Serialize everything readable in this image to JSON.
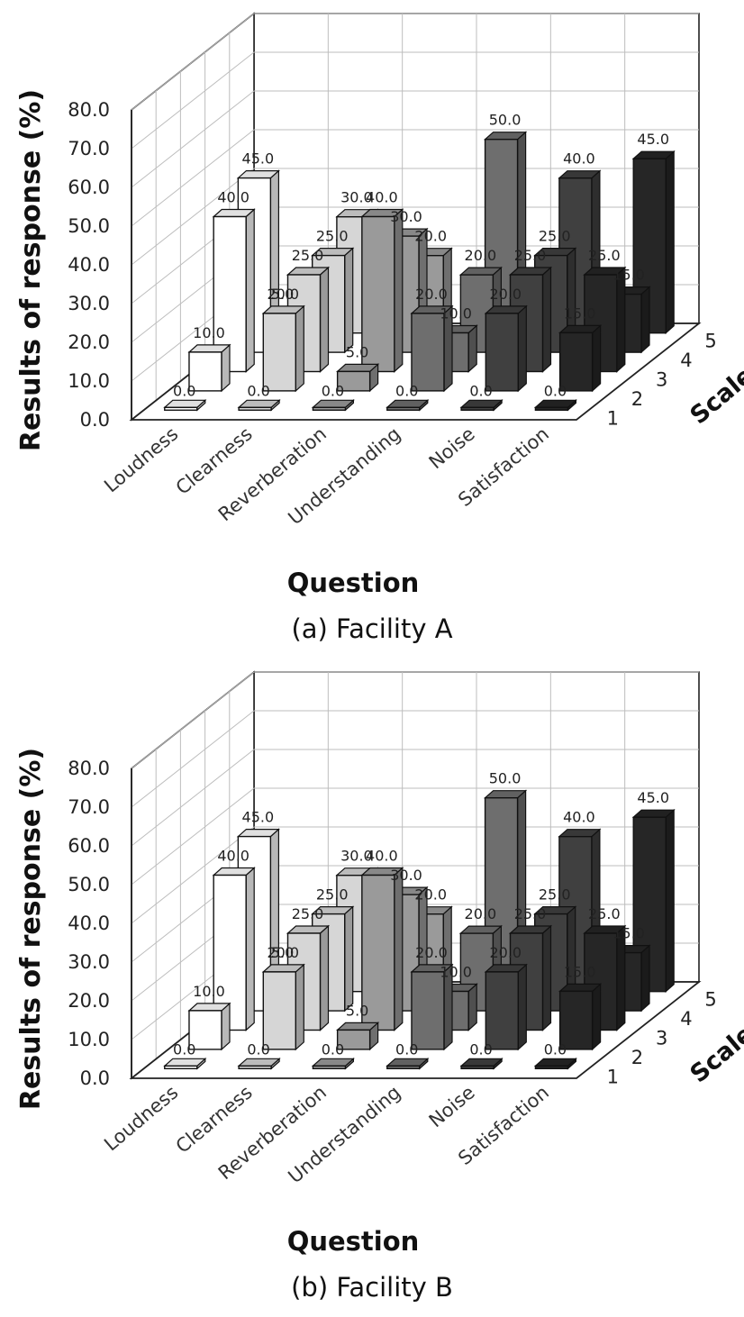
{
  "chart_data": [
    {
      "type": "bar",
      "style": "3d-grouped",
      "caption": "(a) Facility A",
      "xlabel": "Question",
      "ylabel": "Results of response (%)",
      "zlabel": "Scale",
      "ylim": [
        0,
        80
      ],
      "yticks": [
        "0.0",
        "10.0",
        "20.0",
        "30.0",
        "40.0",
        "50.0",
        "60.0",
        "70.0",
        "80.0"
      ],
      "zticks": [
        "1",
        "2",
        "3",
        "4",
        "5"
      ],
      "grid": true,
      "categories": [
        "Loudness",
        "Clearness",
        "Reverberation",
        "Understanding",
        "Noise",
        "Satisfaction"
      ],
      "category_colors": [
        "#ffffff",
        "#d6d6d6",
        "#9a9a9a",
        "#6e6e6e",
        "#404040",
        "#262626"
      ],
      "series": [
        {
          "name": "1",
          "values": [
            0,
            0,
            0,
            0,
            0,
            0
          ]
        },
        {
          "name": "2",
          "values": [
            10,
            20,
            5,
            20,
            20,
            15
          ]
        },
        {
          "name": "3",
          "values": [
            40,
            25,
            40,
            10,
            25,
            25
          ]
        },
        {
          "name": "4",
          "values": [
            45,
            25,
            30,
            20,
            25,
            15
          ]
        },
        {
          "name": "5",
          "values": [
            5,
            30,
            20,
            50,
            40,
            45
          ]
        }
      ]
    },
    {
      "type": "bar",
      "style": "3d-grouped",
      "caption": "(b) Facility B",
      "xlabel": "Question",
      "ylabel": "Results of response (%)",
      "zlabel": "Scale",
      "ylim": [
        0,
        80
      ],
      "yticks": [
        "0.0",
        "10.0",
        "20.0",
        "30.0",
        "40.0",
        "50.0",
        "60.0",
        "70.0",
        "80.0"
      ],
      "zticks": [
        "1",
        "2",
        "3",
        "4",
        "5"
      ],
      "grid": true,
      "categories": [
        "Loudness",
        "Clearness",
        "Reverberation",
        "Understanding",
        "Noise",
        "Satisfaction"
      ],
      "category_colors": [
        "#ffffff",
        "#d6d6d6",
        "#9a9a9a",
        "#6e6e6e",
        "#404040",
        "#262626"
      ],
      "series": [
        {
          "name": "1",
          "values": [
            0,
            0,
            0,
            0,
            0,
            0
          ]
        },
        {
          "name": "2",
          "values": [
            10,
            20,
            5,
            20,
            20,
            15
          ]
        },
        {
          "name": "3",
          "values": [
            40,
            25,
            40,
            10,
            25,
            25
          ]
        },
        {
          "name": "4",
          "values": [
            45,
            25,
            30,
            20,
            25,
            15
          ]
        },
        {
          "name": "5",
          "values": [
            5,
            30,
            20,
            50,
            40,
            45
          ]
        }
      ]
    }
  ]
}
